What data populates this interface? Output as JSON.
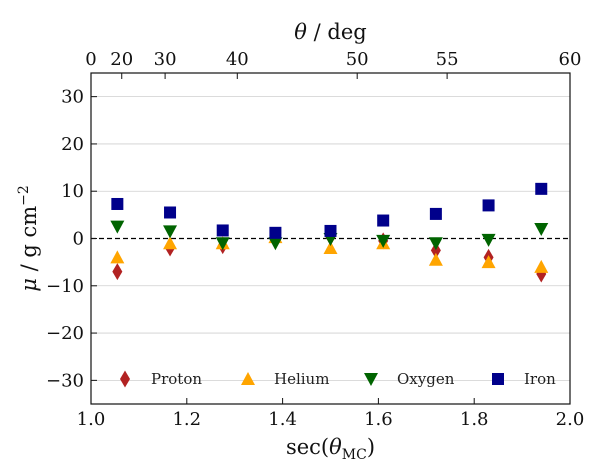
{
  "chart_data": {
    "type": "scatter",
    "xlabel": "sec(θMC)",
    "xlabel_main": "sec(",
    "xlabel_theta": "θ",
    "xlabel_sub": "MC",
    "xlabel_close": ")",
    "ylabel": "μ / g cm−2",
    "ylabel_mu": "μ",
    "ylabel_unit": " / g cm",
    "ylabel_exp": "−2",
    "top_xlabel": "θ / deg",
    "top_xlabel_theta": "θ",
    "top_xlabel_unit": " / deg",
    "xlim": [
      1.0,
      2.0
    ],
    "ylim": [
      -35,
      35
    ],
    "x_ticks": [
      "1.0",
      "1.2",
      "1.4",
      "1.6",
      "1.8",
      "2.0"
    ],
    "x_tick_values": [
      1.0,
      1.2,
      1.4,
      1.6,
      1.8,
      2.0
    ],
    "y_ticks": [
      "30",
      "20",
      "10",
      "0",
      "−10",
      "−20",
      "−30"
    ],
    "y_tick_values": [
      30,
      20,
      10,
      0,
      -10,
      -20,
      -30
    ],
    "top_ticks": [
      "0",
      "20",
      "30",
      "40",
      "50",
      "55",
      "60"
    ],
    "top_tick_degrees": [
      0,
      20,
      30,
      40,
      50,
      55,
      60
    ],
    "grid": "horizontal",
    "reference_line": 0,
    "legend_position": "bottom",
    "x": [
      1.055,
      1.165,
      1.275,
      1.385,
      1.5,
      1.61,
      1.72,
      1.83,
      1.94
    ],
    "series": [
      {
        "name": "Proton",
        "marker": "diamond",
        "color": "#b22222",
        "values": [
          -7.0,
          -2.0,
          -1.5,
          0.5,
          0.3,
          -0.5,
          -2.5,
          -4.0,
          -7.5
        ]
      },
      {
        "name": "Helium",
        "marker": "triangle-up",
        "color": "#ffa500",
        "values": [
          -4.0,
          -1.0,
          -1.0,
          0.3,
          -2.0,
          -1.0,
          -4.5,
          -5.0,
          -6.0
        ]
      },
      {
        "name": "Oxygen",
        "marker": "triangle-down",
        "color": "#006400",
        "values": [
          2.5,
          1.5,
          -1.0,
          -1.0,
          -0.1,
          -0.5,
          -1.0,
          -0.3,
          2.0
        ]
      },
      {
        "name": "Iron",
        "marker": "square",
        "color": "#00008b",
        "values": [
          7.3,
          5.5,
          1.7,
          1.2,
          1.6,
          3.8,
          5.2,
          7.0,
          10.5
        ]
      }
    ]
  }
}
